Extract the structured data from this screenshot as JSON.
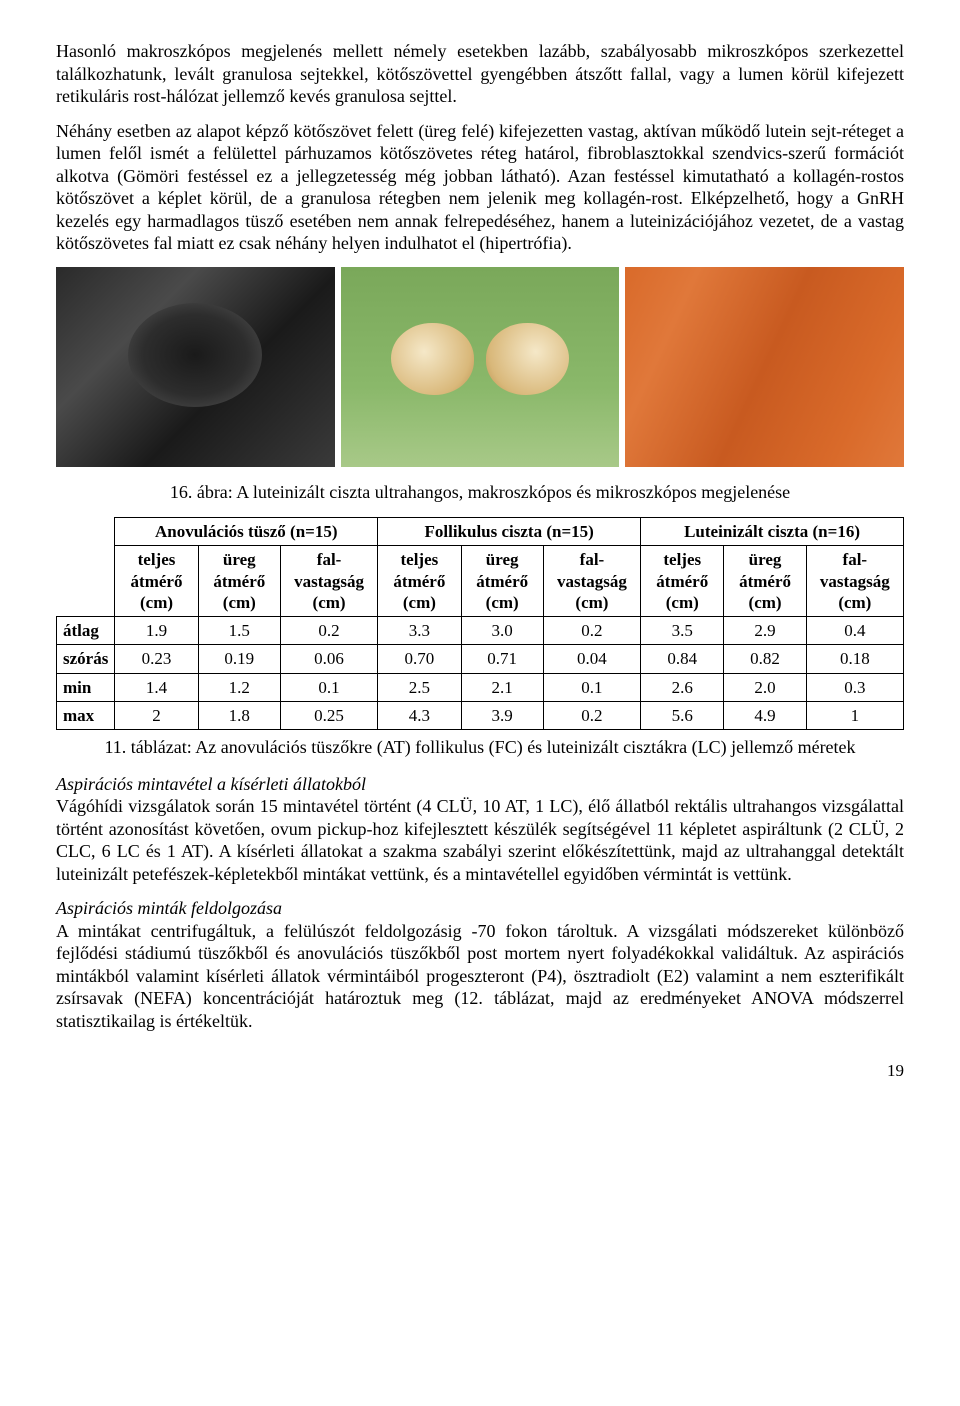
{
  "para1": "Hasonló makroszkópos megjelenés mellett némely esetekben lazább, szabályosabb mikroszkópos szerkezettel találkozhatunk, levált granulosa sejtekkel, kötőszövettel gyengébben átszőtt fallal, vagy a lumen körül kifejezett retikuláris rost-hálózat jellemző kevés granulosa sejttel.",
  "para2": "Néhány esetben az alapot képző kötőszövet felett (üreg felé) kifejezetten vastag, aktívan működő lutein sejt-réteget a lumen felől ismét a felülettel párhuzamos kötőszövetes réteg határol, fibroblasztokkal szendvics-szerű formációt alkotva (Gömöri festéssel ez a jellegzetesség még jobban látható). Azan festéssel kimutatható a kollagén-rostos kötőszövet a képlet körül, de a granulosa rétegben nem jelenik meg kollagén-rost. Elképzelhető, hogy a GnRH kezelés egy harmadlagos tüsző esetében nem annak felrepedéséhez, hanem a luteinizációjához vezetet, de a vastag kötőszövetes fal miatt ez csak néhány helyen indulhatot el (hipertrófia).",
  "fig_caption": "16. ábra: A luteinizált ciszta ultrahangos, makroszkópos és mikroszkópos megjelenése",
  "table": {
    "groups": [
      {
        "title": "Anovulációs tüsző (n=15)"
      },
      {
        "title": "Follikulus ciszta (n=15)"
      },
      {
        "title": "Luteinizált ciszta (n=16)"
      }
    ],
    "subcols": [
      "teljes átmérő (cm)",
      "üreg átmérő (cm)",
      "fal-vastagság (cm)",
      "teljes átmérő (cm)",
      "üreg átmérő (cm)",
      "fal-vastagság (cm)",
      "teljes átmérő (cm)",
      "üreg átmérő (cm)",
      "fal-vastagság (cm)"
    ],
    "rows": [
      {
        "label": "átlag",
        "v": [
          "1.9",
          "1.5",
          "0.2",
          "3.3",
          "3.0",
          "0.2",
          "3.5",
          "2.9",
          "0.4"
        ]
      },
      {
        "label": "szórás",
        "v": [
          "0.23",
          "0.19",
          "0.06",
          "0.70",
          "0.71",
          "0.04",
          "0.84",
          "0.82",
          "0.18"
        ]
      },
      {
        "label": "min",
        "v": [
          "1.4",
          "1.2",
          "0.1",
          "2.5",
          "2.1",
          "0.1",
          "2.6",
          "2.0",
          "0.3"
        ]
      },
      {
        "label": "max",
        "v": [
          "2",
          "1.8",
          "0.25",
          "4.3",
          "3.9",
          "0.2",
          "5.6",
          "4.9",
          "1"
        ]
      }
    ]
  },
  "table_caption": "11. táblázat: Az anovulációs tüszőkre (AT) follikulus (FC) és luteinizált cisztákra (LC) jellemző méretek",
  "sec1_head": "Aspirációs mintavétel a kísérleti állatokból",
  "sec1_body": "Vágóhídi vizsgálatok során 15 mintavétel történt (4 CLÜ, 10 AT, 1 LC), élő állatból rektális ultrahangos vizsgálattal történt azonosítást követően, ovum pickup-hoz kifejlesztett készülék segítségével 11 képletet aspiráltunk (2 CLÜ, 2 CLC, 6 LC és 1 AT). A kísérleti állatokat a szakma szabályi szerint előkészítettünk, majd az ultrahanggal detektált luteinizált petefészek-képletekből mintákat vettünk, és a mintavétellel egyidőben vérmintát is vettünk.",
  "sec2_head": "Aspirációs minták feldolgozása",
  "sec2_body": "A mintákat centrifugáltuk, a felülúszót feldolgozásig -70 fokon tároltuk. A vizsgálati módszereket különböző fejlődési stádiumú tüszőkből és anovulációs tüszőkből post mortem nyert folyadékokkal validáltuk. Az aspirációs mintákból valamint kísérleti állatok vérmintáiból progeszteront (P4), ösztradiolt (E2) valamint a nem eszterifikált zsírsavak (NEFA) koncentrációját határoztuk meg (12. táblázat, majd az eredményeket ANOVA módszerrel statisztikailag is értékeltük.",
  "pagenum": "19",
  "colors": {
    "text": "#000000",
    "bg": "#ffffff",
    "border": "#000000"
  }
}
